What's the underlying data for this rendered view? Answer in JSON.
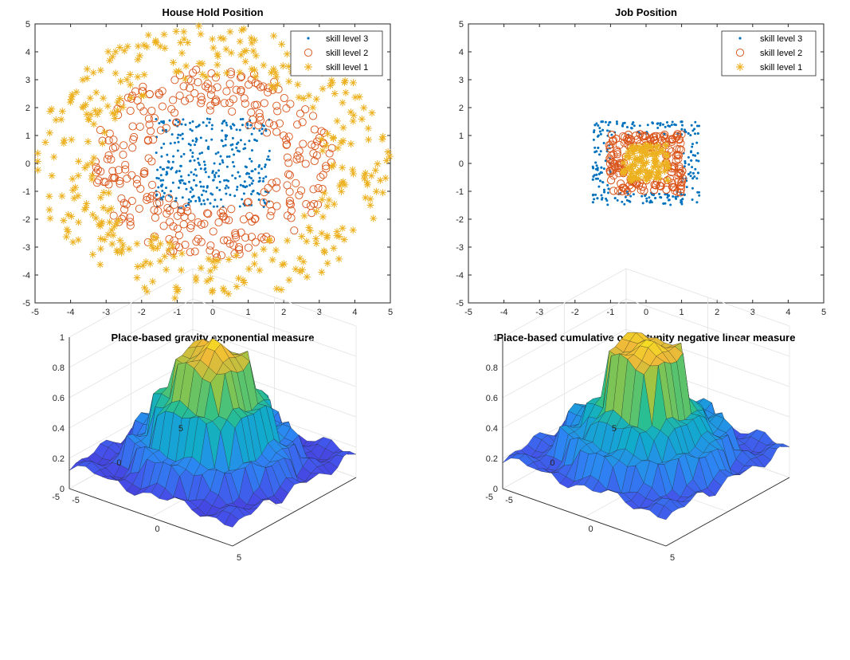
{
  "colors": {
    "series3": "#0072bd",
    "series2": "#d95319",
    "series1": "#edb120"
  },
  "chart_data": [
    {
      "type": "scatter",
      "title": "House Hold Position",
      "xlim": [
        -5,
        5
      ],
      "ylim": [
        -5,
        5
      ],
      "xticks": [
        "-5",
        "-4",
        "-3",
        "-2",
        "-1",
        "0",
        "1",
        "2",
        "3",
        "4",
        "5"
      ],
      "yticks": [
        "-5",
        "-4",
        "-3",
        "-2",
        "-1",
        "0",
        "1",
        "2",
        "3",
        "4",
        "5"
      ],
      "grid": false,
      "legend_position": "top-right",
      "series": [
        {
          "name": "skill level 3",
          "marker": "dot",
          "distribution": "square",
          "r_min": 0,
          "r_max": 1.6,
          "count": 340
        },
        {
          "name": "skill level 2",
          "marker": "circle",
          "distribution": "ring",
          "r_min": 1.7,
          "r_max": 3.4,
          "count": 330
        },
        {
          "name": "skill level 1",
          "marker": "asterisk",
          "distribution": "ring",
          "r_min": 3.1,
          "r_max": 5.0,
          "count": 380
        }
      ]
    },
    {
      "type": "scatter",
      "title": "Job Position",
      "xlim": [
        -5,
        5
      ],
      "ylim": [
        -5,
        5
      ],
      "xticks": [
        "-5",
        "-4",
        "-3",
        "-2",
        "-1",
        "0",
        "1",
        "2",
        "3",
        "4",
        "5"
      ],
      "yticks": [
        "-5",
        "-4",
        "-3",
        "-2",
        "-1",
        "0",
        "1",
        "2",
        "3",
        "4",
        "5"
      ],
      "grid": false,
      "legend_position": "top-right",
      "series": [
        {
          "name": "skill level 3",
          "marker": "dot",
          "distribution": "square-ring",
          "r_min": 1.0,
          "r_max": 1.5,
          "count": 300
        },
        {
          "name": "skill level 2",
          "marker": "circle",
          "distribution": "square-ring",
          "r_min": 0.55,
          "r_max": 1.05,
          "count": 260
        },
        {
          "name": "skill level 1",
          "marker": "asterisk",
          "distribution": "square",
          "r_min": 0,
          "r_max": 0.65,
          "count": 300
        }
      ]
    },
    {
      "type": "surface",
      "title": "Place-based gravity exponential measure",
      "xlim": [
        -5,
        5
      ],
      "ylim": [
        -5,
        5
      ],
      "zlim": [
        0,
        1
      ],
      "zticks": [
        "0",
        "0.2",
        "0.4",
        "0.6",
        "0.8",
        "1"
      ],
      "xticks": [
        "-5",
        "0",
        "5"
      ],
      "yticks": [
        "-5",
        "0",
        "5"
      ],
      "grid": true,
      "colormap": "parula",
      "peak": 0.93,
      "levels": [
        {
          "radius": 1.5,
          "z": 0.82
        },
        {
          "radius": 2.5,
          "z": 0.55
        },
        {
          "radius": 3.5,
          "z": 0.3
        },
        {
          "radius": 5.0,
          "z": 0.15
        }
      ]
    },
    {
      "type": "surface",
      "title": "Place-based cumulative opportunity negative linear measure",
      "xlim": [
        -5,
        5
      ],
      "ylim": [
        -5,
        5
      ],
      "zlim": [
        0,
        1
      ],
      "zticks": [
        "0",
        "0.2",
        "0.4",
        "0.6",
        "0.8",
        "1"
      ],
      "xticks": [
        "-5",
        "0",
        "5"
      ],
      "yticks": [
        "-5",
        "0",
        "5"
      ],
      "grid": true,
      "colormap": "parula",
      "peak": 0.92,
      "levels": [
        {
          "radius": 1.5,
          "z": 0.88
        },
        {
          "radius": 2.5,
          "z": 0.48
        },
        {
          "radius": 3.5,
          "z": 0.36
        },
        {
          "radius": 5.0,
          "z": 0.2
        }
      ]
    }
  ]
}
